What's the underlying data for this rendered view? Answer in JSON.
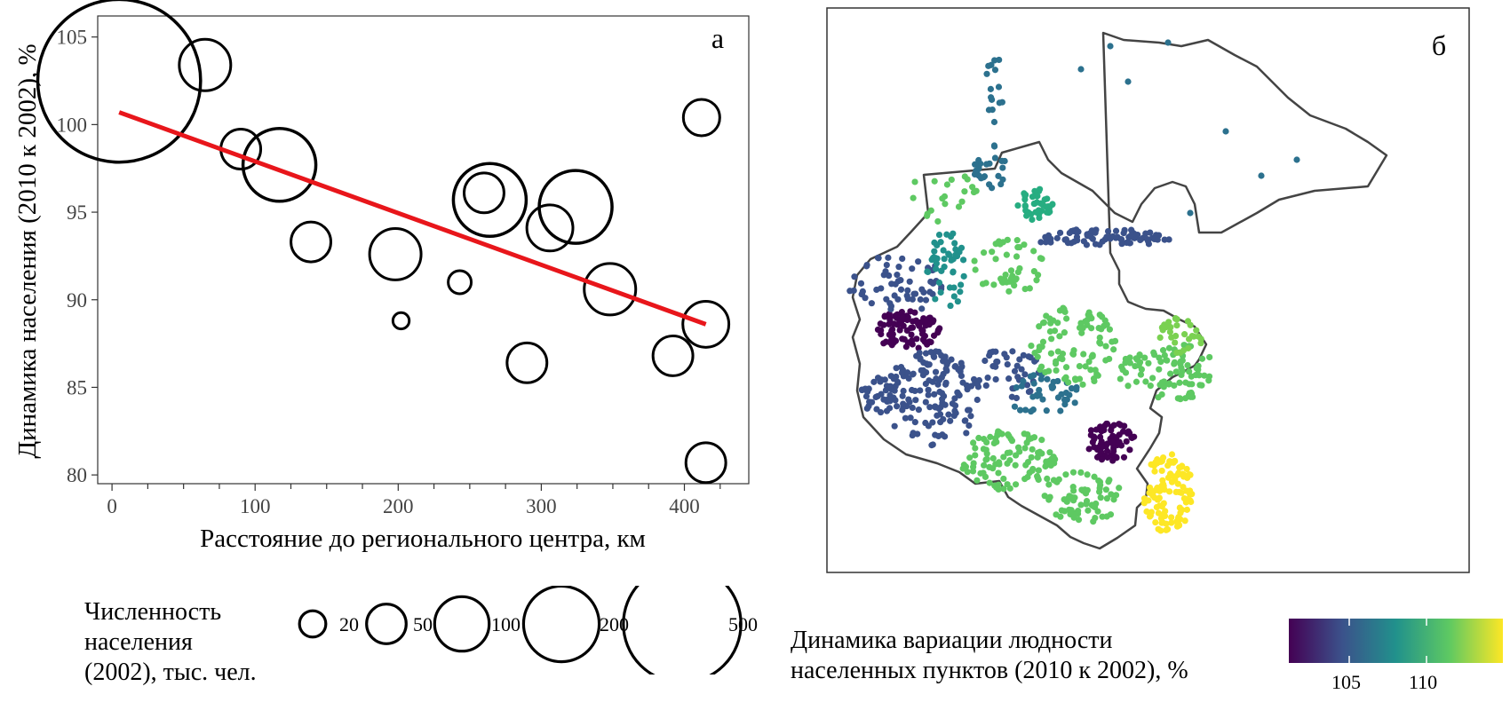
{
  "panel_a": {
    "panel_label": "а",
    "chart_data": {
      "type": "scatter",
      "xlabel": "Расстояние до регионального центра, км",
      "ylabel": "Динамика населения (2010 к 2002), %",
      "xlim": [
        -10,
        445
      ],
      "ylim": [
        79.5,
        106.2
      ],
      "xticks": [
        0,
        100,
        200,
        300,
        400
      ],
      "yticks": [
        80,
        85,
        90,
        95,
        100,
        105
      ],
      "grid": false,
      "points": [
        {
          "x": 5,
          "y": 102.5,
          "pop": 500
        },
        {
          "x": 65,
          "y": 103.4,
          "pop": 50
        },
        {
          "x": 90,
          "y": 98.6,
          "pop": 30
        },
        {
          "x": 117,
          "y": 97.7,
          "pop": 100
        },
        {
          "x": 139,
          "y": 93.3,
          "pop": 30
        },
        {
          "x": 198,
          "y": 92.6,
          "pop": 50
        },
        {
          "x": 202,
          "y": 88.8,
          "pop": 5
        },
        {
          "x": 243,
          "y": 91.0,
          "pop": 10
        },
        {
          "x": 260,
          "y": 96.1,
          "pop": 30
        },
        {
          "x": 264,
          "y": 95.7,
          "pop": 100
        },
        {
          "x": 290,
          "y": 86.4,
          "pop": 30
        },
        {
          "x": 306,
          "y": 94.1,
          "pop": 40
        },
        {
          "x": 324,
          "y": 95.3,
          "pop": 100
        },
        {
          "x": 348,
          "y": 90.6,
          "pop": 50
        },
        {
          "x": 392,
          "y": 86.8,
          "pop": 30
        },
        {
          "x": 412,
          "y": 100.4,
          "pop": 25
        },
        {
          "x": 415,
          "y": 88.6,
          "pop": 40
        },
        {
          "x": 415,
          "y": 80.7,
          "pop": 30
        }
      ],
      "trend_line": {
        "x": [
          5,
          415
        ],
        "y": [
          100.7,
          88.6
        ],
        "color": "#e8161b"
      }
    }
  },
  "panel_b": {
    "panel_label": "б",
    "legend_title": [
      "Динамика вариации людности",
      "населенных пунктов (2010 к 2002), %"
    ],
    "colorbar_ticks": [
      "105",
      "110"
    ],
    "colorbar_range": [
      100.8,
      114.8
    ],
    "palette": [
      "#440154",
      "#3b528b",
      "#21918c",
      "#5ec962",
      "#fde725"
    ]
  },
  "size_legend": {
    "title": [
      "Численность",
      "населения",
      "(2002), тыс. чел."
    ],
    "items": [
      {
        "label": "20",
        "value": 20
      },
      {
        "label": "50",
        "value": 50
      },
      {
        "label": "100",
        "value": 100
      },
      {
        "label": "200",
        "value": 200
      },
      {
        "label": "500",
        "value": 500
      }
    ]
  }
}
